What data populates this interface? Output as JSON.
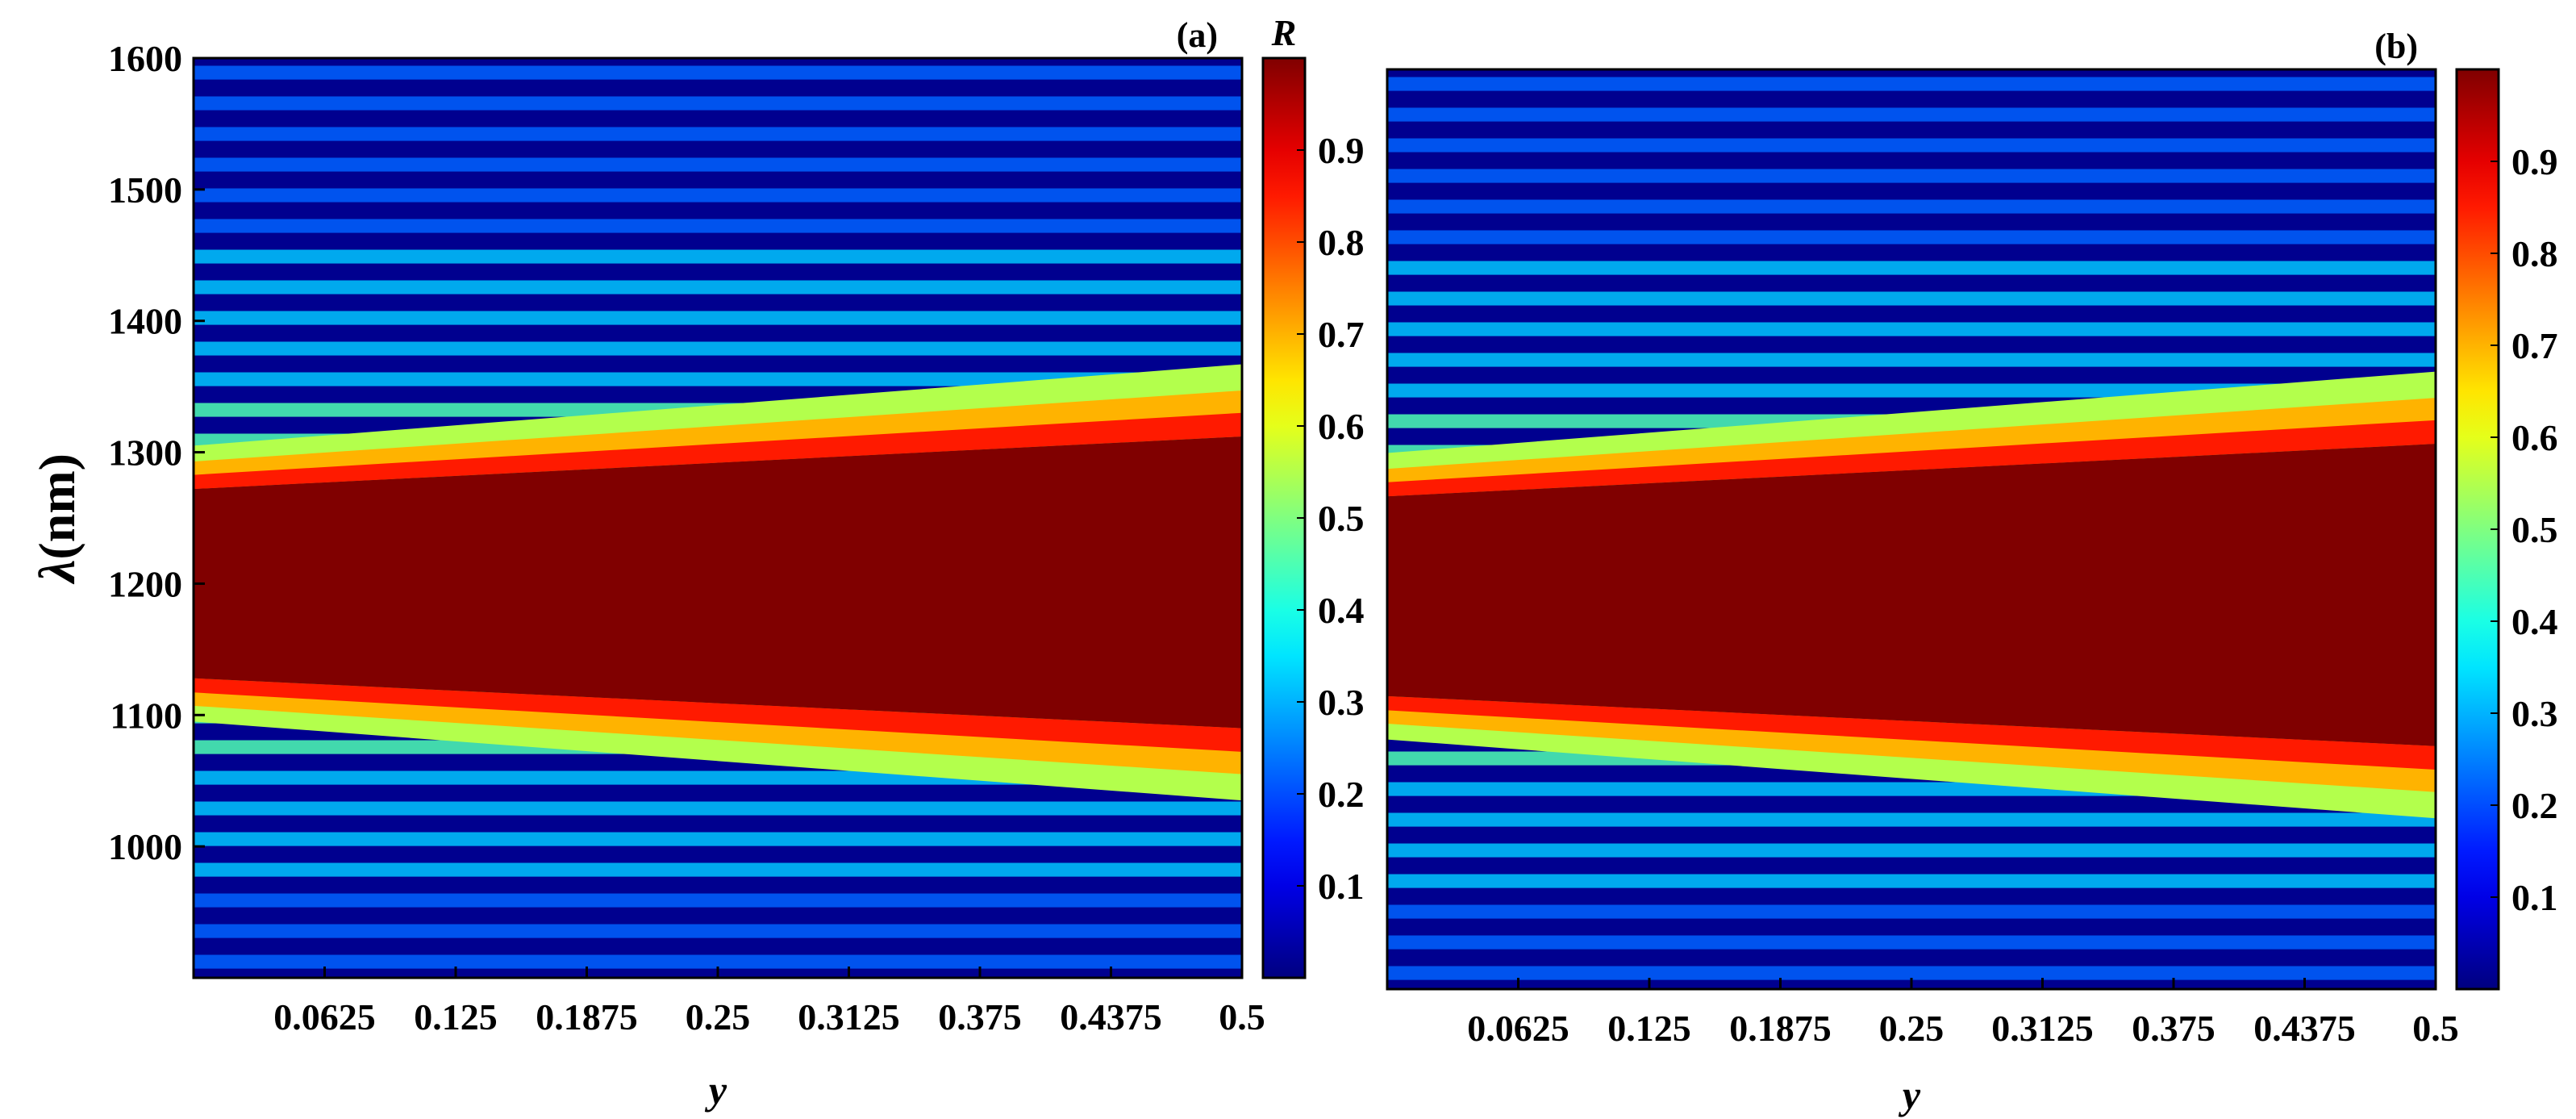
{
  "chart_data": [
    {
      "type": "heatmap",
      "panel_label": "(a)",
      "xlabel": "y",
      "ylabel_symbol": "λ",
      "ylabel_unit": "(nm)",
      "x_range": [
        0,
        0.5
      ],
      "ylim": [
        900,
        1600
      ],
      "xticks": [
        0.0625,
        0.125,
        0.1875,
        0.25,
        0.3125,
        0.375,
        0.4375,
        0.5
      ],
      "xtick_labels": [
        "0.0625",
        "0.125",
        "0.1875",
        "0.25",
        "0.3125",
        "0.375",
        "0.4375",
        "0.5"
      ],
      "yticks": [
        1000,
        1100,
        1200,
        1300,
        1400,
        1500,
        1600
      ],
      "ytick_labels": [
        "1000",
        "1100",
        "1200",
        "1300",
        "1400",
        "1500",
        "1600"
      ],
      "band_lower_edge_nm": [
        1128,
        1090
      ],
      "band_upper_edge_nm": [
        1272,
        1312
      ],
      "band_value": 1.0,
      "colorbar": {
        "title": "R",
        "range": [
          0,
          1
        ],
        "ticks": [
          0.1,
          0.2,
          0.3,
          0.4,
          0.5,
          0.6,
          0.7,
          0.8,
          0.9
        ],
        "tick_labels": [
          "0.1",
          "0.2",
          "0.3",
          "0.4",
          "0.5",
          "0.6",
          "0.7",
          "0.8",
          "0.9"
        ],
        "colormap": "jet"
      }
    },
    {
      "type": "heatmap",
      "panel_label": "(b)",
      "xlabel": "y",
      "x_range": [
        0,
        0.5
      ],
      "ylim": [
        900,
        1600
      ],
      "xticks": [
        0.0625,
        0.125,
        0.1875,
        0.25,
        0.3125,
        0.375,
        0.4375,
        0.5
      ],
      "xtick_labels": [
        "0.0625",
        "0.125",
        "0.1875",
        "0.25",
        "0.3125",
        "0.375",
        "0.4375",
        "0.5"
      ],
      "band_lower_edge_nm": [
        1123,
        1085
      ],
      "band_upper_edge_nm": [
        1275,
        1315
      ],
      "band_value": 1.0,
      "colorbar": {
        "range": [
          0,
          1
        ],
        "ticks": [
          0.1,
          0.2,
          0.3,
          0.4,
          0.5,
          0.6,
          0.7,
          0.8,
          0.9
        ],
        "tick_labels": [
          "0.1",
          "0.2",
          "0.3",
          "0.4",
          "0.5",
          "0.6",
          "0.7",
          "0.8",
          "0.9"
        ],
        "colormap": "jet"
      }
    }
  ]
}
